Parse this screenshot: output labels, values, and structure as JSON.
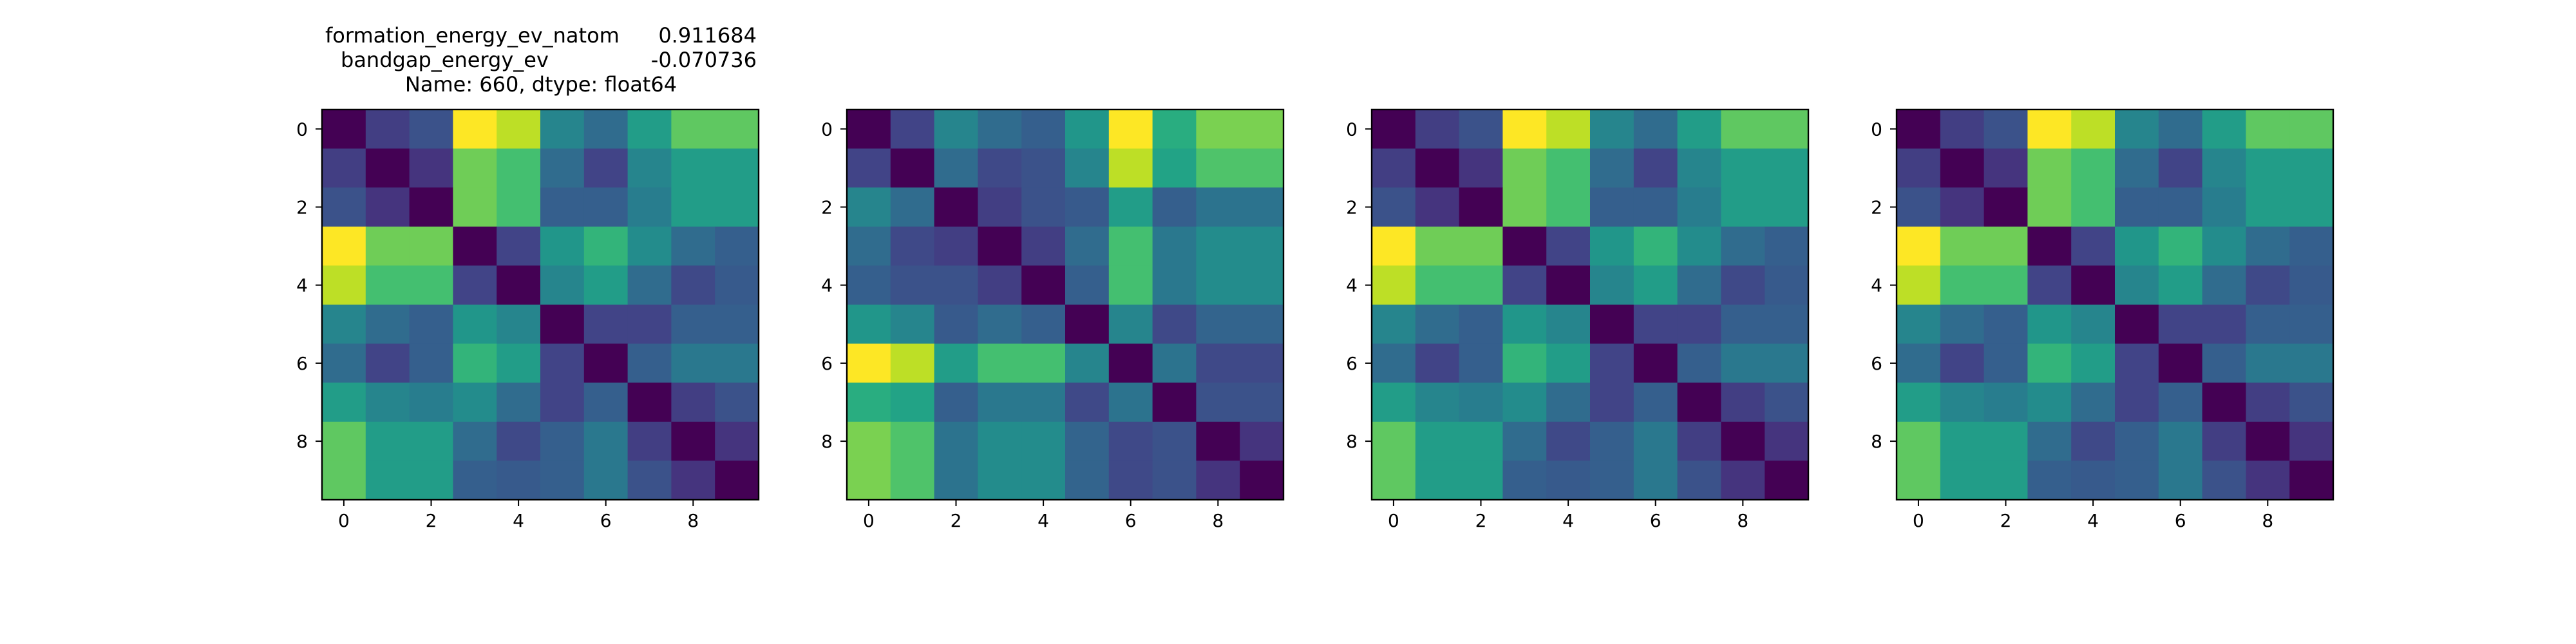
{
  "title": {
    "row1_key": "formation_energy_ev_natom",
    "row1_val": "0.911684",
    "row2_key": "bandgap_energy_ev",
    "row2_val": "-0.070736",
    "row3": "Name: 660, dtype: float64"
  },
  "colormap": "viridis",
  "chart_data": [
    {
      "type": "heatmap",
      "title": "formation_energy_ev_natom    0.911684\nbandgap_energy_ev          -0.070736\nName: 660, dtype: float64",
      "x_ticks": [
        0,
        2,
        4,
        6,
        8
      ],
      "y_ticks": [
        0,
        2,
        4,
        6,
        8
      ],
      "xlim": [
        -0.5,
        9.5
      ],
      "ylim": [
        9.5,
        -0.5
      ],
      "values": [
        [
          0.0,
          0.18,
          0.25,
          1.0,
          0.9,
          0.45,
          0.35,
          0.55,
          0.75,
          0.75
        ],
        [
          0.18,
          0.0,
          0.15,
          0.78,
          0.7,
          0.35,
          0.2,
          0.45,
          0.55,
          0.55
        ],
        [
          0.25,
          0.15,
          0.0,
          0.78,
          0.7,
          0.3,
          0.3,
          0.42,
          0.55,
          0.55
        ],
        [
          1.0,
          0.78,
          0.78,
          0.0,
          0.2,
          0.52,
          0.65,
          0.48,
          0.35,
          0.3
        ],
        [
          0.9,
          0.7,
          0.7,
          0.2,
          0.0,
          0.45,
          0.55,
          0.35,
          0.22,
          0.28
        ],
        [
          0.45,
          0.35,
          0.3,
          0.52,
          0.45,
          0.0,
          0.2,
          0.2,
          0.3,
          0.3
        ],
        [
          0.35,
          0.2,
          0.3,
          0.65,
          0.55,
          0.2,
          0.0,
          0.3,
          0.4,
          0.4
        ],
        [
          0.55,
          0.45,
          0.42,
          0.48,
          0.35,
          0.2,
          0.3,
          0.0,
          0.18,
          0.25
        ],
        [
          0.75,
          0.55,
          0.55,
          0.35,
          0.22,
          0.3,
          0.4,
          0.18,
          0.0,
          0.15
        ],
        [
          0.75,
          0.55,
          0.55,
          0.3,
          0.28,
          0.3,
          0.4,
          0.25,
          0.15,
          0.0
        ]
      ]
    },
    {
      "type": "heatmap",
      "title": "",
      "x_ticks": [
        0,
        2,
        4,
        6,
        8
      ],
      "y_ticks": [
        0,
        2,
        4,
        6,
        8
      ],
      "xlim": [
        -0.5,
        9.5
      ],
      "ylim": [
        9.5,
        -0.5
      ],
      "values": [
        [
          0.0,
          0.2,
          0.45,
          0.35,
          0.3,
          0.52,
          1.0,
          0.62,
          0.8,
          0.8
        ],
        [
          0.2,
          0.0,
          0.35,
          0.22,
          0.25,
          0.45,
          0.9,
          0.58,
          0.72,
          0.72
        ],
        [
          0.45,
          0.35,
          0.0,
          0.18,
          0.25,
          0.28,
          0.55,
          0.3,
          0.38,
          0.38
        ],
        [
          0.35,
          0.22,
          0.18,
          0.0,
          0.18,
          0.35,
          0.7,
          0.4,
          0.48,
          0.48
        ],
        [
          0.3,
          0.25,
          0.25,
          0.18,
          0.0,
          0.3,
          0.7,
          0.4,
          0.48,
          0.48
        ],
        [
          0.52,
          0.45,
          0.28,
          0.35,
          0.3,
          0.0,
          0.45,
          0.22,
          0.32,
          0.32
        ],
        [
          1.0,
          0.9,
          0.55,
          0.7,
          0.7,
          0.45,
          0.0,
          0.38,
          0.22,
          0.22
        ],
        [
          0.62,
          0.58,
          0.3,
          0.4,
          0.4,
          0.22,
          0.38,
          0.0,
          0.25,
          0.25
        ],
        [
          0.8,
          0.72,
          0.38,
          0.48,
          0.48,
          0.32,
          0.22,
          0.25,
          0.0,
          0.15
        ],
        [
          0.8,
          0.72,
          0.38,
          0.48,
          0.48,
          0.32,
          0.22,
          0.25,
          0.15,
          0.0
        ]
      ]
    },
    {
      "type": "heatmap",
      "title": "",
      "x_ticks": [
        0,
        2,
        4,
        6,
        8
      ],
      "y_ticks": [
        0,
        2,
        4,
        6,
        8
      ],
      "xlim": [
        -0.5,
        9.5
      ],
      "ylim": [
        9.5,
        -0.5
      ],
      "values": [
        [
          0.0,
          0.18,
          0.25,
          1.0,
          0.9,
          0.45,
          0.35,
          0.55,
          0.75,
          0.75
        ],
        [
          0.18,
          0.0,
          0.15,
          0.78,
          0.7,
          0.35,
          0.2,
          0.45,
          0.55,
          0.55
        ],
        [
          0.25,
          0.15,
          0.0,
          0.78,
          0.7,
          0.3,
          0.3,
          0.42,
          0.55,
          0.55
        ],
        [
          1.0,
          0.78,
          0.78,
          0.0,
          0.2,
          0.52,
          0.65,
          0.48,
          0.35,
          0.3
        ],
        [
          0.9,
          0.7,
          0.7,
          0.2,
          0.0,
          0.45,
          0.55,
          0.35,
          0.22,
          0.28
        ],
        [
          0.45,
          0.35,
          0.3,
          0.52,
          0.45,
          0.0,
          0.2,
          0.2,
          0.3,
          0.3
        ],
        [
          0.35,
          0.2,
          0.3,
          0.65,
          0.55,
          0.2,
          0.0,
          0.3,
          0.4,
          0.4
        ],
        [
          0.55,
          0.45,
          0.42,
          0.48,
          0.35,
          0.2,
          0.3,
          0.0,
          0.18,
          0.25
        ],
        [
          0.75,
          0.55,
          0.55,
          0.35,
          0.22,
          0.3,
          0.4,
          0.18,
          0.0,
          0.15
        ],
        [
          0.75,
          0.55,
          0.55,
          0.3,
          0.28,
          0.3,
          0.4,
          0.25,
          0.15,
          0.0
        ]
      ]
    },
    {
      "type": "heatmap",
      "title": "",
      "x_ticks": [
        0,
        2,
        4,
        6,
        8
      ],
      "y_ticks": [
        0,
        2,
        4,
        6,
        8
      ],
      "xlim": [
        -0.5,
        9.5
      ],
      "ylim": [
        9.5,
        -0.5
      ],
      "values": [
        [
          0.0,
          0.18,
          0.25,
          1.0,
          0.9,
          0.45,
          0.35,
          0.55,
          0.75,
          0.75
        ],
        [
          0.18,
          0.0,
          0.15,
          0.78,
          0.7,
          0.35,
          0.2,
          0.45,
          0.55,
          0.55
        ],
        [
          0.25,
          0.15,
          0.0,
          0.78,
          0.7,
          0.3,
          0.3,
          0.42,
          0.55,
          0.55
        ],
        [
          1.0,
          0.78,
          0.78,
          0.0,
          0.2,
          0.52,
          0.65,
          0.48,
          0.35,
          0.3
        ],
        [
          0.9,
          0.7,
          0.7,
          0.2,
          0.0,
          0.45,
          0.55,
          0.35,
          0.22,
          0.28
        ],
        [
          0.45,
          0.35,
          0.3,
          0.52,
          0.45,
          0.0,
          0.2,
          0.2,
          0.3,
          0.3
        ],
        [
          0.35,
          0.2,
          0.3,
          0.65,
          0.55,
          0.2,
          0.0,
          0.3,
          0.4,
          0.4
        ],
        [
          0.55,
          0.45,
          0.42,
          0.48,
          0.35,
          0.2,
          0.3,
          0.0,
          0.18,
          0.25
        ],
        [
          0.75,
          0.55,
          0.55,
          0.35,
          0.22,
          0.3,
          0.4,
          0.18,
          0.0,
          0.15
        ],
        [
          0.75,
          0.55,
          0.55,
          0.3,
          0.28,
          0.3,
          0.4,
          0.25,
          0.15,
          0.0
        ]
      ]
    }
  ]
}
